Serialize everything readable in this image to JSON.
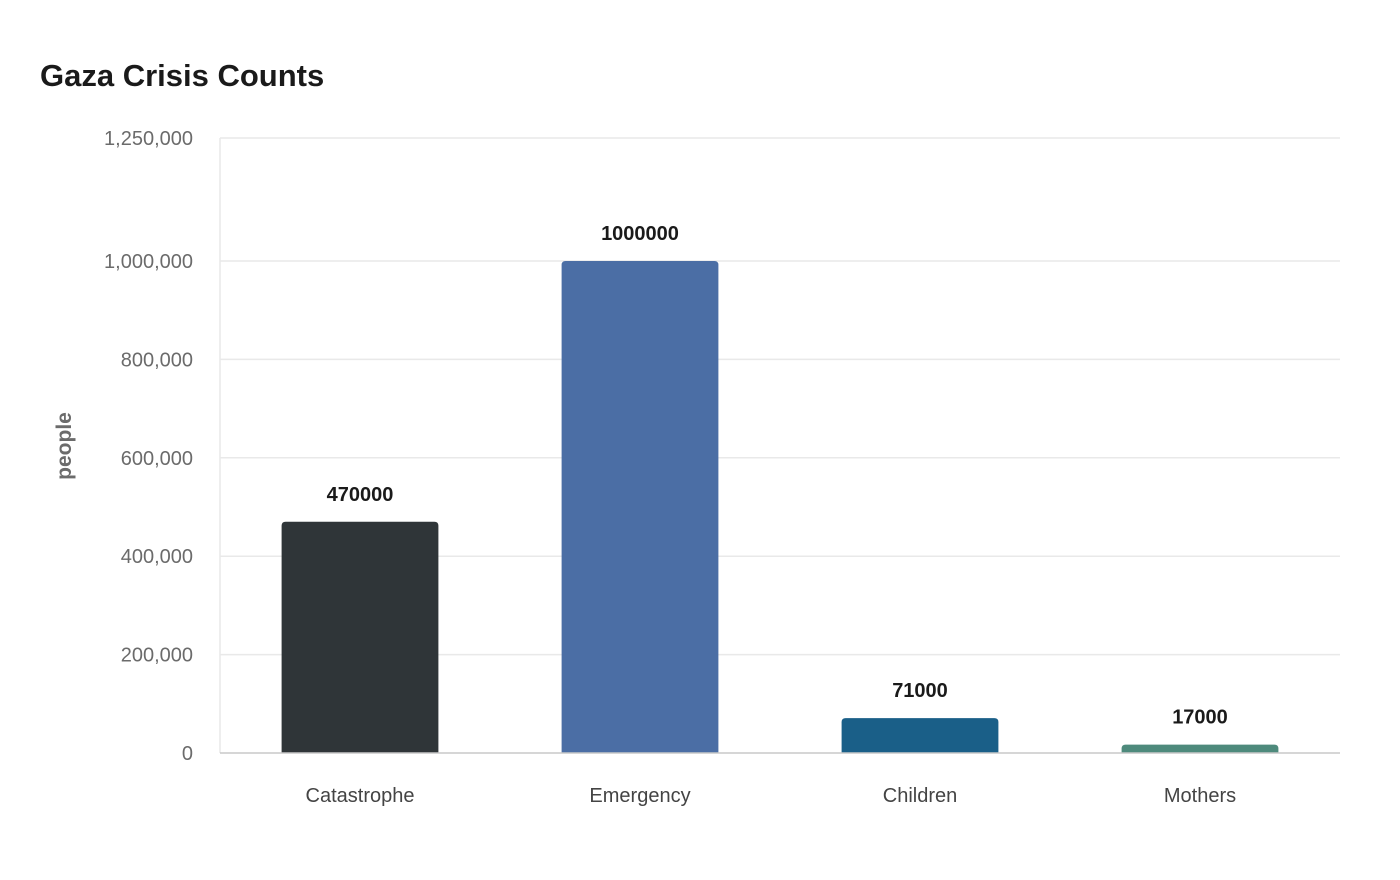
{
  "chart_data": {
    "type": "bar",
    "title": "Gaza Crisis Counts",
    "xlabel": "",
    "ylabel": "people",
    "categories": [
      "Catastrophe",
      "Emergency",
      "Children",
      "Mothers"
    ],
    "values": [
      470000,
      1000000,
      71000,
      17000
    ],
    "data_labels": [
      "470000",
      "1000000",
      "71000",
      "17000"
    ],
    "colors": [
      "#2f3538",
      "#4b6ea5",
      "#1a5f88",
      "#4e8a7c"
    ],
    "ylim": [
      0,
      1250000
    ],
    "yticks": [
      0,
      200000,
      400000,
      600000,
      800000,
      1000000,
      1250000
    ],
    "ytick_labels": [
      "0",
      "200,000",
      "400,000",
      "600,000",
      "800,000",
      "1,000,000",
      "1,250,000"
    ],
    "grid": true,
    "legend": "none",
    "grid_color": "#e9e9e9",
    "axis_color": "#c8c8c8"
  }
}
